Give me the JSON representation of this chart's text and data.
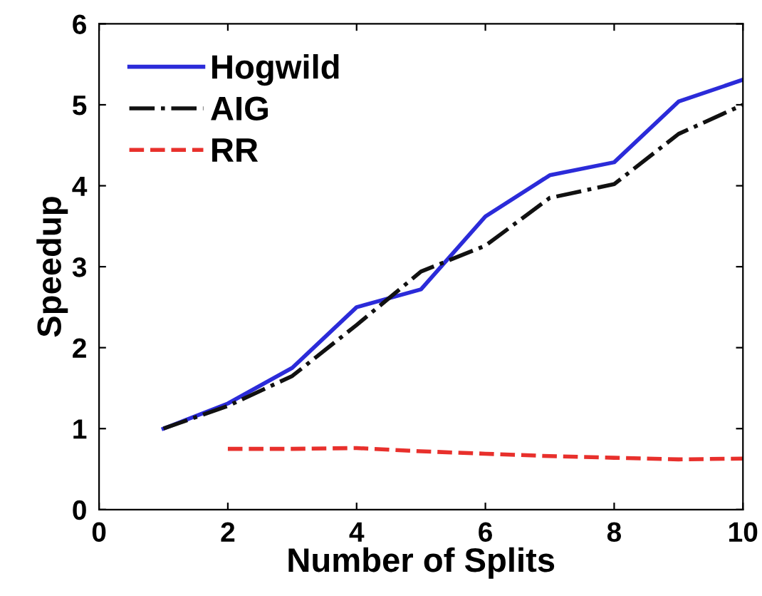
{
  "chart_data": {
    "type": "line",
    "xlabel": "Number of Splits",
    "ylabel": "Speedup",
    "xlim": [
      0,
      10
    ],
    "ylim": [
      0,
      6
    ],
    "xticks": [
      0,
      2,
      4,
      6,
      8,
      10
    ],
    "yticks": [
      0,
      1,
      2,
      3,
      4,
      5,
      6
    ],
    "grid": false,
    "legend": "top left",
    "series": [
      {
        "name": "Hogwild",
        "color": "#2b2bd9",
        "line_style": "solid",
        "x": [
          1,
          2,
          3,
          4,
          5,
          6,
          7,
          8,
          9,
          10
        ],
        "values": [
          1.0,
          1.31,
          1.75,
          2.5,
          2.72,
          3.62,
          4.13,
          4.29,
          5.04,
          5.31
        ]
      },
      {
        "name": "AIG",
        "color": "#111111",
        "line_style": "dashdot",
        "x": [
          1,
          2,
          3,
          4,
          5,
          6,
          7,
          8,
          9,
          10
        ],
        "values": [
          1.0,
          1.28,
          1.65,
          2.28,
          2.94,
          3.26,
          3.85,
          4.02,
          4.64,
          5.0
        ]
      },
      {
        "name": "RR",
        "color": "#e8302c",
        "line_style": "dashed",
        "x": [
          2,
          3,
          4,
          5,
          6,
          7,
          8,
          9,
          10
        ],
        "values": [
          0.75,
          0.75,
          0.76,
          0.72,
          0.69,
          0.66,
          0.64,
          0.62,
          0.63
        ]
      }
    ]
  }
}
